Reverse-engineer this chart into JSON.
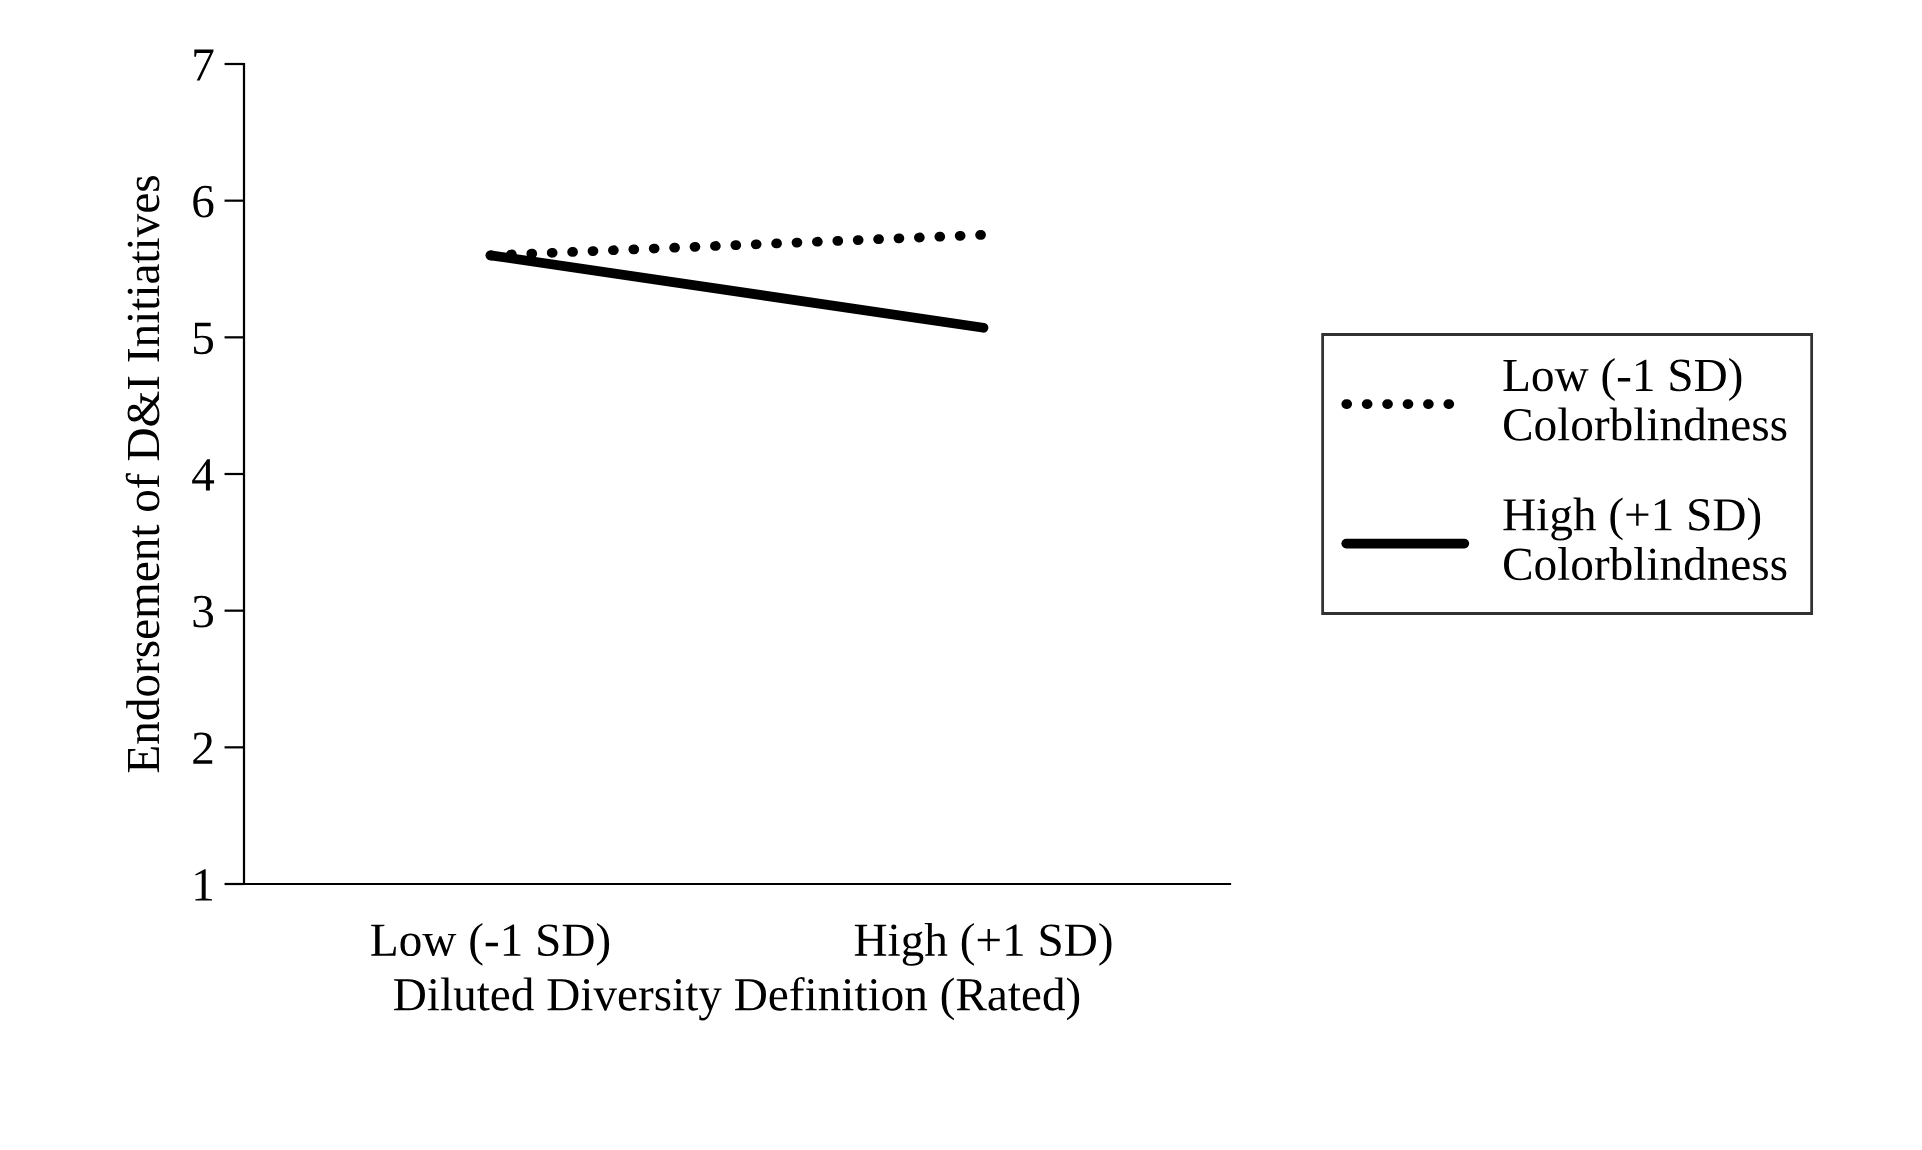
{
  "chart_data": {
    "type": "line",
    "xlabel": "Diluted Diversity Definition (Rated)",
    "ylabel": "Endorsement of D&I Initiatives",
    "categories": [
      "Low (-1 SD)",
      "High (+1 SD)"
    ],
    "series": [
      {
        "name": "Low (-1 SD)\nColorblindness",
        "color": "#000000",
        "values": [
          5.6,
          5.75
        ],
        "line_style": "dotted"
      },
      {
        "name": "High (+1 SD)\nColorblindness",
        "color": "#000000",
        "values": [
          5.6,
          5.07
        ],
        "line_style": "solid"
      }
    ],
    "ylim": [
      1,
      7
    ],
    "yticks": [
      1,
      2,
      3,
      4,
      5,
      6,
      7
    ],
    "grid": false,
    "legend": "right",
    "marker": "none"
  }
}
